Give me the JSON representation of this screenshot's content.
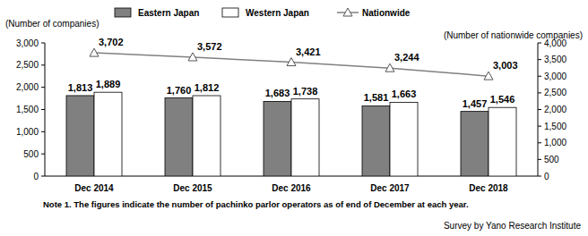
{
  "chart_data": {
    "type": "bar",
    "y_label": "(Number of companies)",
    "y2_label": "(Number of nationwide companies)",
    "categories": [
      "Dec 2014",
      "Dec 2015",
      "Dec 2016",
      "Dec 2017",
      "Dec 2018"
    ],
    "series": [
      {
        "name": "Eastern Japan",
        "type": "bar",
        "color": "#808080",
        "values": [
          1813,
          1760,
          1683,
          1581,
          1457
        ],
        "value_labels": [
          "1,813",
          "1,760",
          "1,683",
          "1,581",
          "1,457"
        ]
      },
      {
        "name": "Western Japan",
        "type": "bar",
        "color": "#ffffff",
        "values": [
          1889,
          1812,
          1738,
          1663,
          1546
        ],
        "value_labels": [
          "1,889",
          "1,812",
          "1,738",
          "1,663",
          "1,546"
        ]
      },
      {
        "name": "Nationwide",
        "type": "line",
        "axis": "y2",
        "color": "#808080",
        "marker": "triangle",
        "line_style": "solid",
        "values": [
          3702,
          3572,
          3421,
          3244,
          3003
        ],
        "value_labels": [
          "3,702",
          "3,572",
          "3,421",
          "3,244",
          "3,003"
        ]
      }
    ],
    "ylim": [
      0,
      3000
    ],
    "yticks": [
      0,
      500,
      {
        "value": 1000,
        "label": "1,000"
      },
      {
        "value": 1500,
        "label": "1,500"
      },
      {
        "value": 2000,
        "label": "2,000"
      },
      {
        "value": 2500,
        "label": "2,500"
      },
      {
        "value": 3000,
        "label": "3,000"
      }
    ],
    "y2lim": [
      0,
      4000
    ],
    "y2ticks": [
      0,
      500,
      {
        "value": 1000,
        "label": "1,000"
      },
      {
        "value": 1500,
        "label": "1,500"
      },
      {
        "value": 2000,
        "label": "2,000"
      },
      {
        "value": 2500,
        "label": "2,500"
      },
      {
        "value": 3000,
        "label": "3,000"
      },
      {
        "value": 3500,
        "label": "3,500"
      },
      {
        "value": 4000,
        "label": "4,000"
      }
    ],
    "grid": false,
    "legend": "top",
    "data_labels": true,
    "note": "Note 1. The figures indicate the number of pachinko parlor operators as of end of December at each year.",
    "source": "Survey by Yano Research Institute"
  }
}
